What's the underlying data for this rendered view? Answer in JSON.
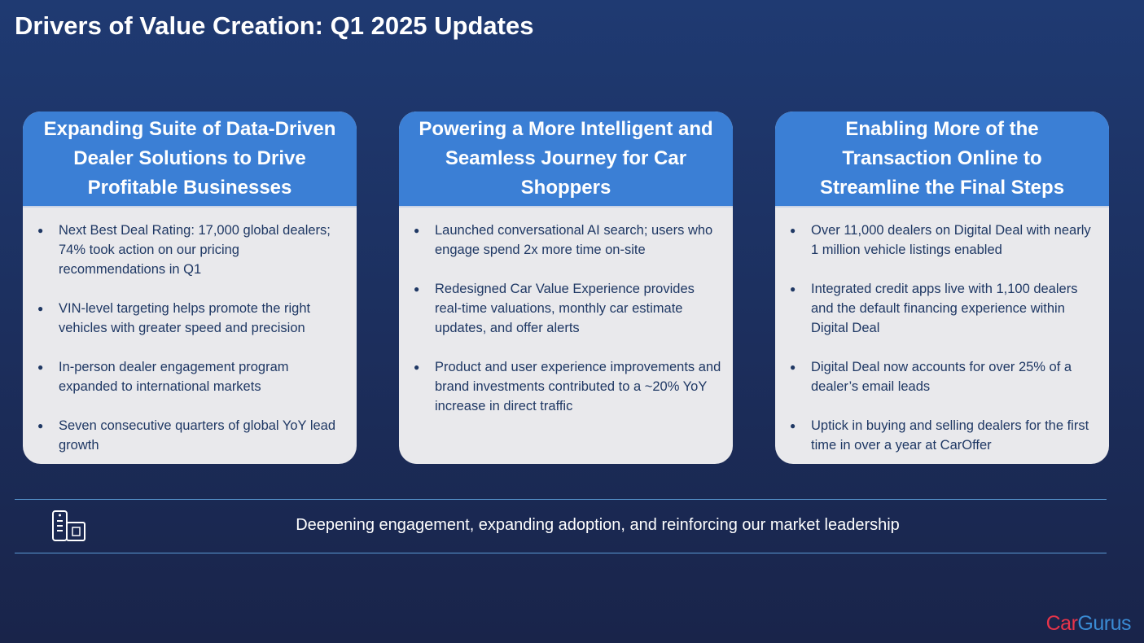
{
  "title": "Drivers of Value Creation: Q1 2025 Updates",
  "cards": [
    {
      "heading": "Expanding Suite of Data-Driven Dealer Solutions to Drive Profitable Businesses",
      "bullets": [
        "Next Best Deal Rating: 17,000 global dealers; 74% took action on our pricing recommendations in Q1",
        "VIN-level targeting helps promote the right vehicles with greater speed and precision",
        "In-person dealer engagement program expanded to international markets",
        "Seven consecutive quarters of global YoY lead growth"
      ]
    },
    {
      "heading": "Powering a More Intelligent and Seamless Journey for Car Shoppers",
      "bullets": [
        "Launched conversational AI search; users who engage spend 2x more time on-site",
        "Redesigned Car Value Experience provides real-time valuations, monthly car estimate updates, and offer alerts",
        "Product and user experience improvements and brand investments contributed to a ~20% YoY increase in direct traffic"
      ]
    },
    {
      "heading": "Enabling More of the Transaction Online to Streamline the Final Steps",
      "bullets": [
        "Over 11,000 dealers on Digital Deal with nearly 1 million vehicle listings enabled",
        "Integrated credit apps live with 1,100 dealers and the default financing experience within Digital Deal",
        "Digital Deal now accounts for over 25% of a dealer’s email leads",
        "Uptick in buying and selling dealers for the first time in over a year at CarOffer"
      ]
    }
  ],
  "tagline": "Deepening engagement, expanding adoption, and reinforcing our market leadership",
  "logo": [
    "Car",
    "Gurus"
  ]
}
